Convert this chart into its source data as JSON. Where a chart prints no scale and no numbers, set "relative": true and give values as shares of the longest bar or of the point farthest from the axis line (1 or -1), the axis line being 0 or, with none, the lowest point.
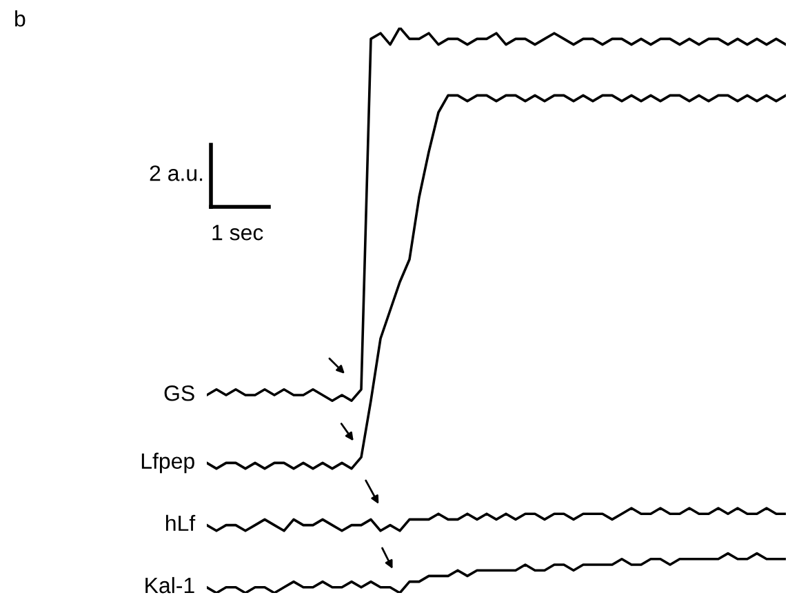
{
  "chart_data": {
    "type": "line",
    "relative": true,
    "marker": "none",
    "line_style": "solid",
    "annotations": [
      "b",
      "2 a.u.",
      "1 sec"
    ],
    "categories": [
      null,
      null,
      null,
      null,
      null,
      null,
      null,
      null,
      null,
      null,
      null,
      null,
      null,
      null,
      null,
      null,
      null,
      null,
      null,
      null,
      null,
      null,
      null,
      null,
      null,
      null,
      null,
      null,
      null,
      null,
      null,
      null,
      null,
      null,
      null,
      null,
      null,
      null,
      null,
      null,
      null,
      null,
      null,
      null,
      null,
      null,
      null,
      null,
      null,
      null,
      null,
      null,
      null,
      null,
      null,
      null,
      null,
      null,
      null,
      null,
      null
    ],
    "series": [
      {
        "name": "GS",
        "color": "#000000",
        "values": [
          0.35,
          0.36,
          0.35,
          0.36,
          0.35,
          0.35,
          0.36,
          0.35,
          0.36,
          0.35,
          0.35,
          0.36,
          0.35,
          0.34,
          0.35,
          0.34,
          0.36,
          0.98,
          0.99,
          0.97,
          1.0,
          0.98,
          0.98,
          0.99,
          0.97,
          0.98,
          0.98,
          0.97,
          0.98,
          0.98,
          0.99,
          0.97,
          0.98,
          0.98,
          0.97,
          0.98,
          0.99,
          0.98,
          0.97,
          0.98,
          0.98,
          0.97,
          0.98,
          0.98,
          0.97,
          0.98,
          0.97,
          0.98,
          0.98,
          0.97,
          0.98,
          0.97,
          0.98,
          0.98,
          0.97,
          0.98,
          0.97,
          0.98,
          0.97,
          0.98,
          0.97
        ]
      },
      {
        "name": "Lfpep",
        "color": "#000000",
        "values": [
          0.23,
          0.22,
          0.23,
          0.23,
          0.22,
          0.23,
          0.22,
          0.23,
          0.23,
          0.22,
          0.23,
          0.22,
          0.23,
          0.22,
          0.23,
          0.22,
          0.24,
          0.34,
          0.45,
          0.5,
          0.55,
          0.59,
          0.7,
          0.78,
          0.85,
          0.88,
          0.88,
          0.87,
          0.88,
          0.88,
          0.87,
          0.88,
          0.88,
          0.87,
          0.88,
          0.87,
          0.88,
          0.88,
          0.87,
          0.88,
          0.87,
          0.88,
          0.88,
          0.87,
          0.88,
          0.87,
          0.88,
          0.87,
          0.88,
          0.88,
          0.87,
          0.88,
          0.87,
          0.88,
          0.88,
          0.87,
          0.88,
          0.87,
          0.88,
          0.87,
          0.88
        ]
      },
      {
        "name": "hLf",
        "color": "#000000",
        "values": [
          0.12,
          0.11,
          0.12,
          0.12,
          0.11,
          0.12,
          0.13,
          0.12,
          0.11,
          0.13,
          0.12,
          0.12,
          0.13,
          0.12,
          0.11,
          0.12,
          0.12,
          0.13,
          0.11,
          0.12,
          0.11,
          0.13,
          0.13,
          0.13,
          0.14,
          0.13,
          0.13,
          0.14,
          0.13,
          0.14,
          0.13,
          0.14,
          0.13,
          0.14,
          0.14,
          0.13,
          0.14,
          0.14,
          0.13,
          0.14,
          0.14,
          0.14,
          0.13,
          0.14,
          0.15,
          0.14,
          0.14,
          0.15,
          0.14,
          0.14,
          0.15,
          0.14,
          0.14,
          0.15,
          0.14,
          0.15,
          0.14,
          0.14,
          0.15,
          0.14,
          0.14
        ]
      },
      {
        "name": "Kal-1",
        "color": "#000000",
        "values": [
          0.01,
          0.0,
          0.01,
          0.01,
          0.0,
          0.01,
          0.01,
          0.0,
          0.01,
          0.02,
          0.01,
          0.01,
          0.02,
          0.01,
          0.01,
          0.02,
          0.01,
          0.02,
          0.01,
          0.01,
          0.0,
          0.02,
          0.02,
          0.03,
          0.03,
          0.03,
          0.04,
          0.03,
          0.04,
          0.04,
          0.04,
          0.04,
          0.04,
          0.05,
          0.04,
          0.04,
          0.05,
          0.05,
          0.04,
          0.05,
          0.05,
          0.05,
          0.05,
          0.06,
          0.05,
          0.05,
          0.06,
          0.06,
          0.05,
          0.06,
          0.06,
          0.06,
          0.06,
          0.06,
          0.07,
          0.06,
          0.06,
          0.07,
          0.06,
          0.06,
          0.06
        ]
      }
    ]
  }
}
